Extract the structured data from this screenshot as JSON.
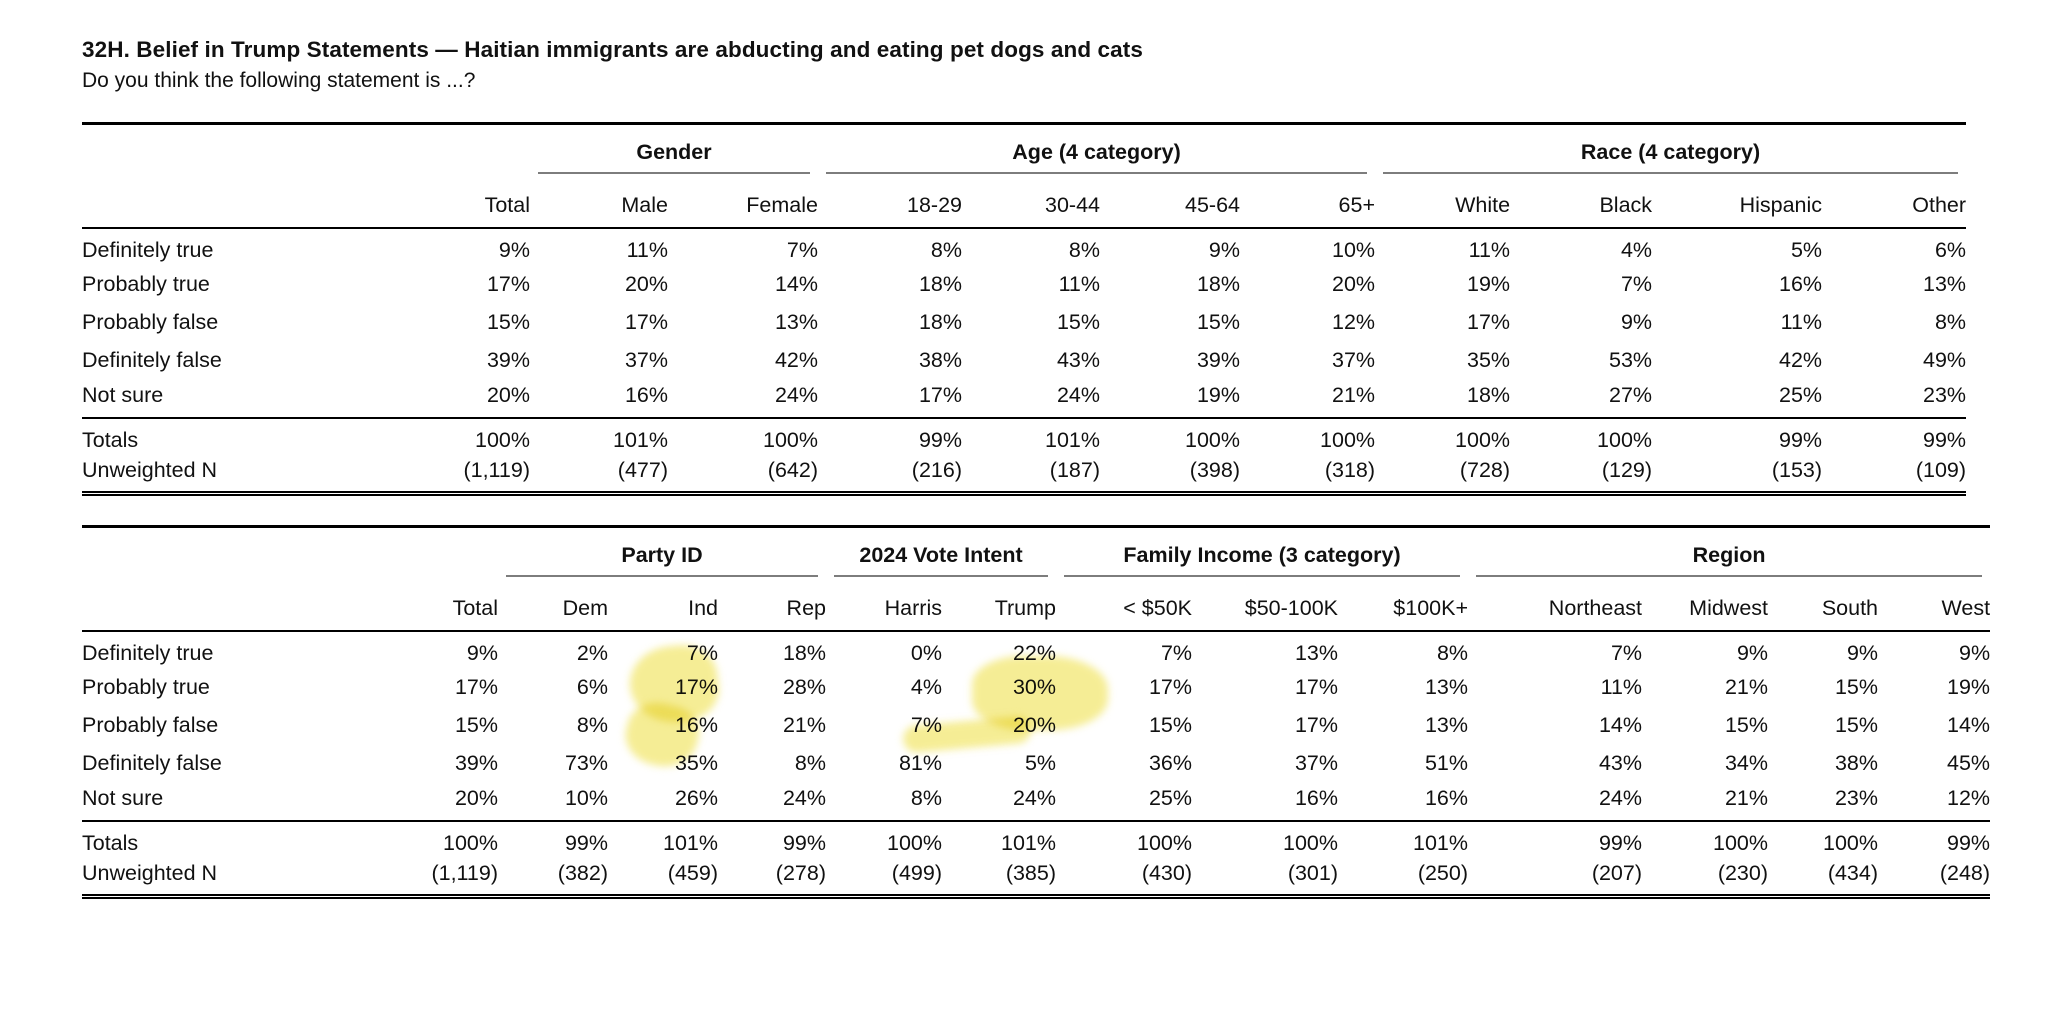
{
  "title": "32H. Belief in Trump Statements — Haitian immigrants are abducting and eating pet dogs and cats",
  "subtitle": "Do you think the following statement is ...?",
  "row_labels": [
    "Definitely true",
    "Probably true",
    "Probably false",
    "Definitely false",
    "Not sure"
  ],
  "totals_label": "Totals",
  "unweighted_label": "Unweighted N",
  "tables": [
    {
      "groups": [
        {
          "label": "",
          "cols": [
            "Total"
          ]
        },
        {
          "label": "Gender",
          "cols": [
            "Male",
            "Female"
          ]
        },
        {
          "label": "Age (4 category)",
          "cols": [
            "18-29",
            "30-44",
            "45-64",
            "65+"
          ]
        },
        {
          "label": "Race (4 category)",
          "cols": [
            "White",
            "Black",
            "Hispanic",
            "Other"
          ]
        }
      ],
      "rows": [
        [
          "9%",
          "11%",
          "7%",
          "8%",
          "8%",
          "9%",
          "10%",
          "11%",
          "4%",
          "5%",
          "6%"
        ],
        [
          "17%",
          "20%",
          "14%",
          "18%",
          "11%",
          "18%",
          "20%",
          "19%",
          "7%",
          "16%",
          "13%"
        ],
        [
          "15%",
          "17%",
          "13%",
          "18%",
          "15%",
          "15%",
          "12%",
          "17%",
          "9%",
          "11%",
          "8%"
        ],
        [
          "39%",
          "37%",
          "42%",
          "38%",
          "43%",
          "39%",
          "37%",
          "35%",
          "53%",
          "42%",
          "49%"
        ],
        [
          "20%",
          "16%",
          "24%",
          "17%",
          "24%",
          "19%",
          "21%",
          "18%",
          "27%",
          "25%",
          "23%"
        ]
      ],
      "totals": [
        "100%",
        "101%",
        "100%",
        "99%",
        "101%",
        "100%",
        "100%",
        "100%",
        "100%",
        "99%",
        "99%"
      ],
      "unweighted": [
        "(1,119)",
        "(477)",
        "(642)",
        "(216)",
        "(187)",
        "(398)",
        "(318)",
        "(728)",
        "(129)",
        "(153)",
        "(109)"
      ]
    },
    {
      "groups": [
        {
          "label": "",
          "cols": [
            "Total"
          ]
        },
        {
          "label": "Party ID",
          "cols": [
            "Dem",
            "Ind",
            "Rep"
          ]
        },
        {
          "label": "2024 Vote Intent",
          "cols": [
            "Harris",
            "Trump"
          ]
        },
        {
          "label": "Family Income (3 category)",
          "cols": [
            "< $50K",
            "$50-100K",
            "$100K+"
          ]
        },
        {
          "label": "Region",
          "cols": [
            "Northeast",
            "Midwest",
            "South",
            "West"
          ]
        }
      ],
      "rows": [
        [
          "9%",
          "2%",
          "7%",
          "18%",
          "0%",
          "22%",
          "7%",
          "13%",
          "8%",
          "7%",
          "9%",
          "9%",
          "9%"
        ],
        [
          "17%",
          "6%",
          "17%",
          "28%",
          "4%",
          "30%",
          "17%",
          "17%",
          "13%",
          "11%",
          "21%",
          "15%",
          "19%"
        ],
        [
          "15%",
          "8%",
          "16%",
          "21%",
          "7%",
          "20%",
          "15%",
          "17%",
          "13%",
          "14%",
          "15%",
          "15%",
          "14%"
        ],
        [
          "39%",
          "73%",
          "35%",
          "8%",
          "81%",
          "5%",
          "36%",
          "37%",
          "51%",
          "43%",
          "34%",
          "38%",
          "45%"
        ],
        [
          "20%",
          "10%",
          "26%",
          "24%",
          "8%",
          "24%",
          "25%",
          "16%",
          "16%",
          "24%",
          "21%",
          "23%",
          "12%"
        ]
      ],
      "totals": [
        "100%",
        "99%",
        "101%",
        "99%",
        "100%",
        "101%",
        "100%",
        "100%",
        "101%",
        "99%",
        "100%",
        "100%",
        "99%"
      ],
      "unweighted": [
        "(1,119)",
        "(382)",
        "(459)",
        "(278)",
        "(499)",
        "(385)",
        "(430)",
        "(301)",
        "(250)",
        "(207)",
        "(230)",
        "(434)",
        "(248)"
      ]
    }
  ],
  "highlights": {
    "color": "#f4ea82",
    "marked_cells": [
      {
        "table": 2,
        "column": "Ind",
        "row": "Definitely true",
        "value": "7%"
      },
      {
        "table": 2,
        "column": "Ind",
        "row": "Probably true",
        "value": "17%"
      },
      {
        "table": 2,
        "column": "Trump",
        "row": "Definitely true",
        "value": "22%"
      },
      {
        "table": 2,
        "column": "Trump",
        "row": "Probably true",
        "value": "30%"
      }
    ]
  }
}
